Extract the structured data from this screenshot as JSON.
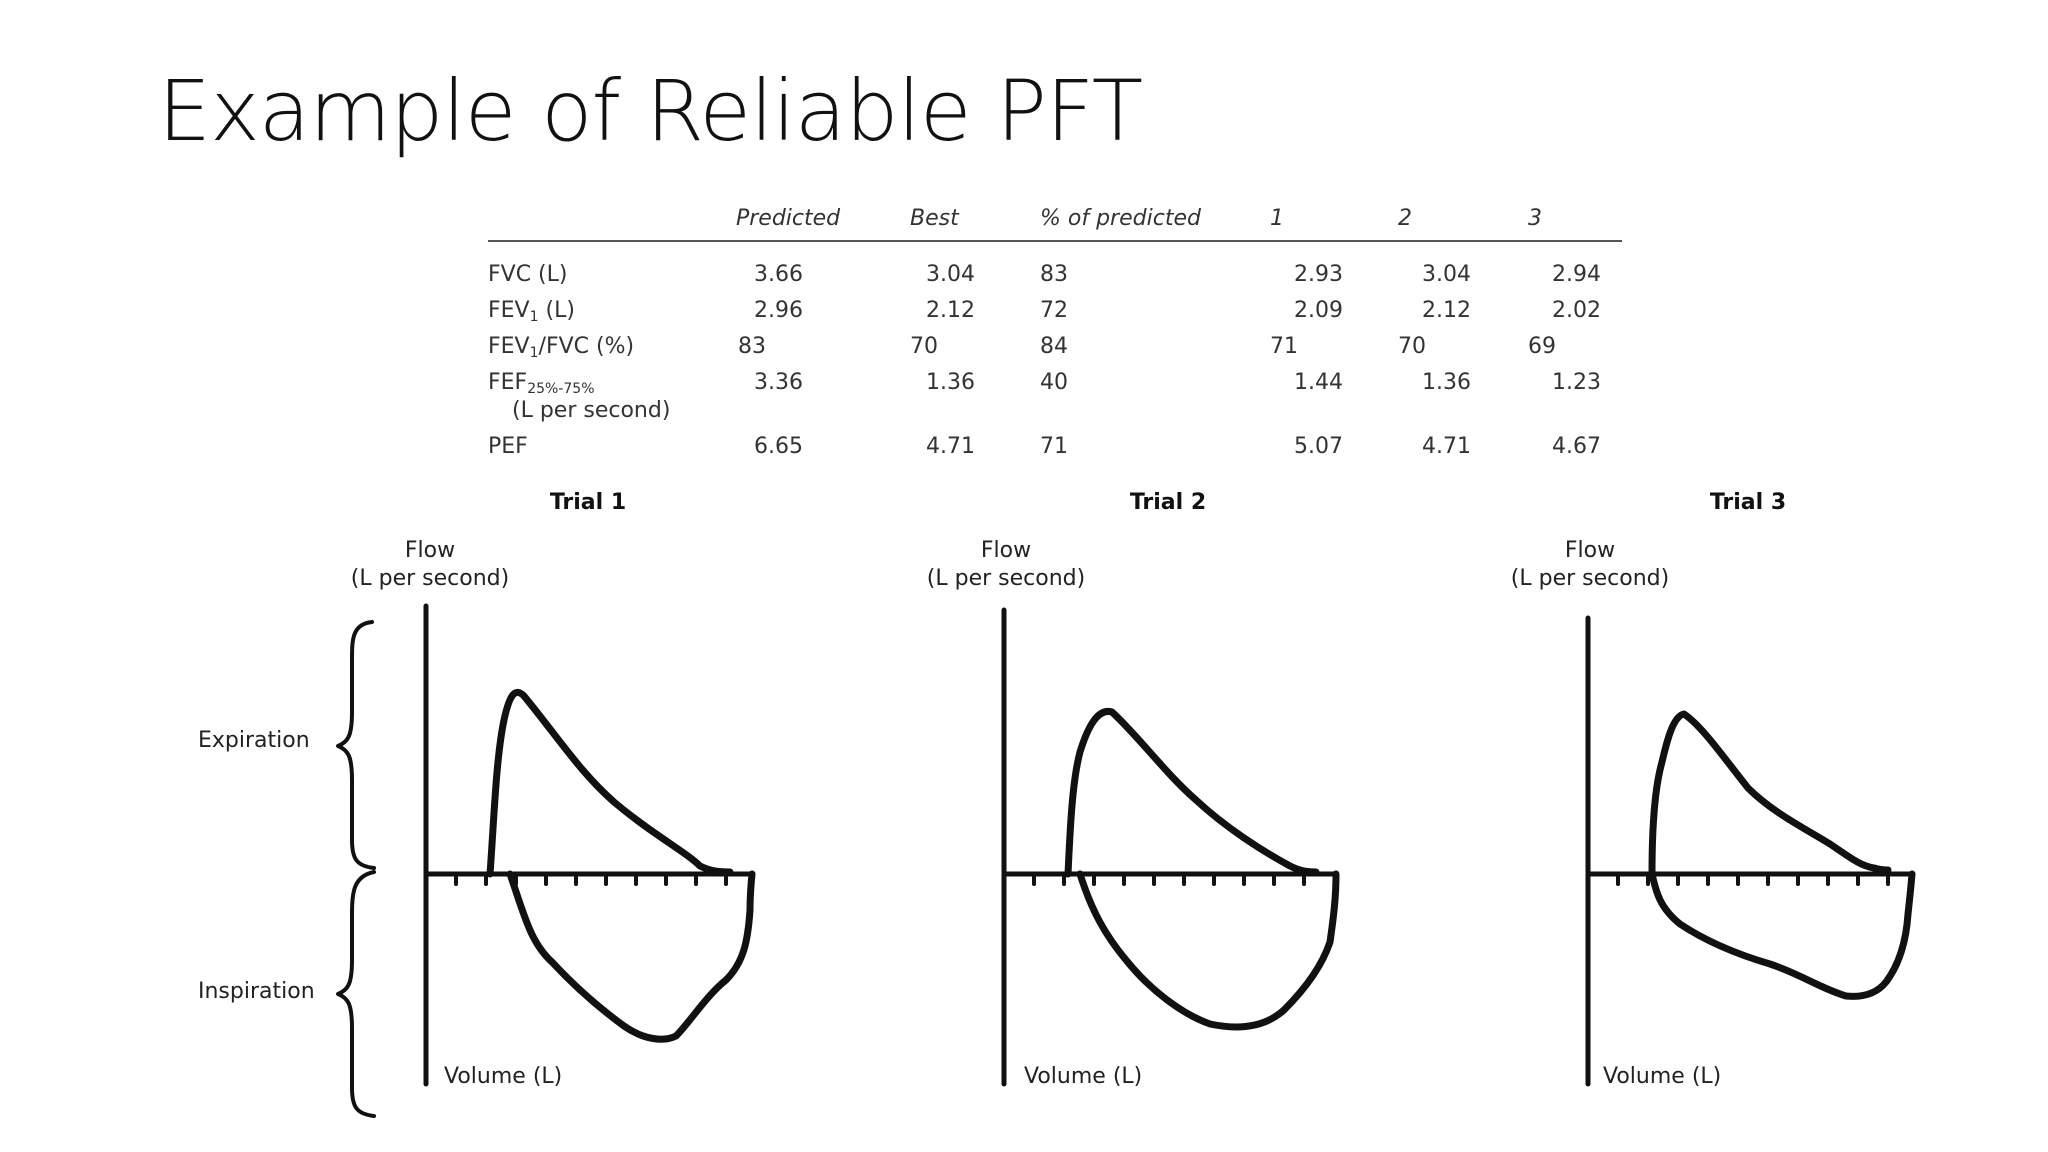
{
  "title": "Example of Reliable PFT",
  "table": {
    "headers": [
      "Predicted",
      "Best",
      "% of predicted",
      "1",
      "2",
      "3"
    ],
    "rows": [
      {
        "label": "FVC (L)",
        "values": [
          "3.66",
          "3.04",
          "83",
          "2.93",
          "3.04",
          "2.94"
        ]
      },
      {
        "label_main": "FEV",
        "label_sub": "1",
        "label_rest": " (L)",
        "values": [
          "2.96",
          "2.12",
          "72",
          "2.09",
          "2.12",
          "2.02"
        ]
      },
      {
        "label_main": "FEV",
        "label_sub": "1",
        "label_rest": "/FVC (%)",
        "values": [
          "83",
          "70",
          "84",
          "71",
          "70",
          "69"
        ]
      },
      {
        "label_main": "FEF",
        "label_sub": "25%-75%",
        "label_rest": "",
        "label_line2": "(L per second)",
        "values": [
          "3.36",
          "1.36",
          "40",
          "1.44",
          "1.36",
          "1.23"
        ]
      },
      {
        "label": "PEF",
        "values": [
          "6.65",
          "4.71",
          "71",
          "5.07",
          "4.71",
          "4.67"
        ]
      }
    ]
  },
  "trials": [
    {
      "title": "Trial 1",
      "flow_label": "Flow",
      "flow_unit": "(L per second)",
      "volume_label": "Volume (L)"
    },
    {
      "title": "Trial 2",
      "flow_label": "Flow",
      "flow_unit": "(L per second)",
      "volume_label": "Volume (L)"
    },
    {
      "title": "Trial 3",
      "flow_label": "Flow",
      "flow_unit": "(L per second)",
      "volume_label": "Volume (L)"
    }
  ],
  "phases": {
    "expiration": "Expiration",
    "inspiration": "Inspiration"
  }
}
